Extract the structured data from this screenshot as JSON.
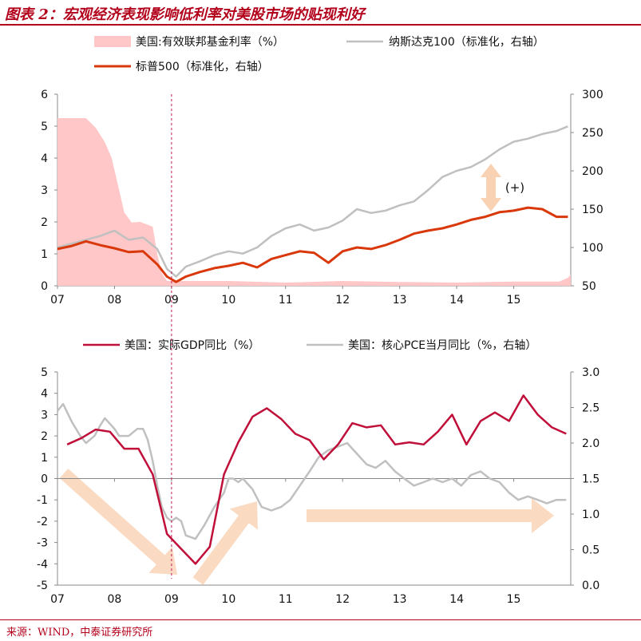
{
  "title": "图表 2：宏观经济表现影响低利率对美股市场的贴现利好",
  "source": "来源：WIND，中泰证券研究所",
  "colors": {
    "accent": "#b3001b",
    "fed_fill": "#ffc7c7",
    "nasdaq": "#c0c0c0",
    "sp500": "#d9380b",
    "gdp": "#c0103a",
    "pce": "#c0c0c0",
    "arrow": "#f9d2b3"
  },
  "chart_data": [
    {
      "type": "area+line",
      "title": "",
      "x_tick_labels": [
        "07",
        "08",
        "09",
        "10",
        "11",
        "12",
        "13",
        "14",
        "15"
      ],
      "x_range": [
        2007.0,
        2016.0
      ],
      "ylim_left": [
        0,
        6
      ],
      "yticks_left": [
        "0",
        "1",
        "2",
        "3",
        "4",
        "5",
        "6"
      ],
      "ylim_right": [
        50,
        300
      ],
      "yticks_right": [
        "50",
        "100",
        "150",
        "200",
        "250",
        "300"
      ],
      "annotation": "(+)",
      "series": [
        {
          "name": "美国:有效联邦基金利率（%）",
          "axis": "left",
          "style": "area",
          "x": [
            2007.0,
            2007.5,
            2007.67,
            2007.83,
            2007.95,
            2008.08,
            2008.17,
            2008.3,
            2008.45,
            2008.67,
            2008.75,
            2008.83,
            2008.92,
            2009.0,
            2009.5,
            2010.0,
            2011.0,
            2012.0,
            2013.0,
            2014.0,
            2015.0,
            2015.8,
            2015.95,
            2016.0
          ],
          "values": [
            5.25,
            5.25,
            4.95,
            4.5,
            4.0,
            3.0,
            2.3,
            1.98,
            2.0,
            1.85,
            1.0,
            0.4,
            0.15,
            0.15,
            0.15,
            0.15,
            0.1,
            0.15,
            0.12,
            0.1,
            0.13,
            0.13,
            0.25,
            0.35
          ]
        },
        {
          "name": "纳斯达克100（标准化，右轴）",
          "axis": "right",
          "style": "line",
          "x": [
            2007.0,
            2007.25,
            2007.5,
            2007.75,
            2008.0,
            2008.25,
            2008.5,
            2008.75,
            2008.92,
            2009.08,
            2009.25,
            2009.5,
            2009.75,
            2010.0,
            2010.25,
            2010.5,
            2010.75,
            2011.0,
            2011.25,
            2011.5,
            2011.75,
            2012.0,
            2012.25,
            2012.5,
            2012.75,
            2013.0,
            2013.25,
            2013.5,
            2013.75,
            2014.0,
            2014.25,
            2014.5,
            2014.75,
            2015.0,
            2015.25,
            2015.5,
            2015.75,
            2015.95
          ],
          "values": [
            100,
            105,
            110,
            115,
            122,
            110,
            113,
            98,
            72,
            62,
            75,
            82,
            90,
            95,
            92,
            100,
            115,
            125,
            130,
            122,
            126,
            135,
            150,
            145,
            148,
            155,
            160,
            175,
            192,
            200,
            205,
            215,
            228,
            238,
            242,
            248,
            252,
            258
          ]
        },
        {
          "name": "标普500（标准化，右轴）",
          "axis": "right",
          "style": "line",
          "x": [
            2007.0,
            2007.25,
            2007.5,
            2007.75,
            2008.0,
            2008.25,
            2008.5,
            2008.75,
            2008.92,
            2009.08,
            2009.25,
            2009.5,
            2009.75,
            2010.0,
            2010.25,
            2010.5,
            2010.75,
            2011.0,
            2011.25,
            2011.5,
            2011.75,
            2012.0,
            2012.25,
            2012.5,
            2012.75,
            2013.0,
            2013.25,
            2013.5,
            2013.75,
            2014.0,
            2014.25,
            2014.5,
            2014.75,
            2015.0,
            2015.25,
            2015.5,
            2015.75,
            2015.95
          ],
          "values": [
            98,
            102,
            108,
            103,
            99,
            94,
            95,
            78,
            62,
            55,
            62,
            68,
            73,
            76,
            80,
            74,
            85,
            90,
            95,
            93,
            80,
            95,
            100,
            98,
            103,
            110,
            118,
            122,
            125,
            130,
            136,
            140,
            146,
            148,
            152,
            150,
            140,
            140
          ]
        }
      ]
    },
    {
      "type": "line",
      "title": "",
      "x_tick_labels": [
        "07",
        "08",
        "09",
        "10",
        "11",
        "12",
        "13",
        "14",
        "15"
      ],
      "x_range": [
        2007.0,
        2016.0
      ],
      "ylim_left": [
        -5,
        5
      ],
      "yticks_left": [
        "-5",
        "-4",
        "-3",
        "-2",
        "-1",
        "0",
        "1",
        "2",
        "3",
        "4",
        "5"
      ],
      "ylim_right": [
        0.0,
        3.0
      ],
      "yticks_right": [
        "0.0",
        "0.5",
        "1.0",
        "1.5",
        "2.0",
        "2.5",
        "3.0"
      ],
      "series": [
        {
          "name": "美国：实际GDP同比（%）",
          "axis": "left",
          "x": [
            2007.17,
            2007.42,
            2007.67,
            2007.92,
            2008.17,
            2008.42,
            2008.67,
            2008.92,
            2009.17,
            2009.42,
            2009.67,
            2009.92,
            2010.17,
            2010.42,
            2010.67,
            2010.92,
            2011.17,
            2011.42,
            2011.67,
            2011.92,
            2012.17,
            2012.42,
            2012.67,
            2012.92,
            2013.17,
            2013.42,
            2013.67,
            2013.92,
            2014.17,
            2014.42,
            2014.67,
            2014.92,
            2015.17,
            2015.42,
            2015.67,
            2015.92
          ],
          "values": [
            1.6,
            1.9,
            2.3,
            2.2,
            1.4,
            1.4,
            0.2,
            -2.6,
            -3.3,
            -4.0,
            -3.2,
            0.2,
            1.7,
            2.9,
            3.3,
            2.8,
            2.1,
            1.8,
            0.9,
            1.6,
            2.6,
            2.4,
            2.5,
            1.6,
            1.7,
            1.6,
            2.2,
            3.0,
            1.6,
            2.7,
            3.1,
            2.7,
            3.9,
            3.0,
            2.4,
            2.1
          ]
        },
        {
          "name": "美国：核心PCE当月同比（%，右轴）",
          "axis": "right",
          "x": [
            2007.0,
            2007.1,
            2007.25,
            2007.4,
            2007.5,
            2007.65,
            2007.75,
            2007.83,
            2008.0,
            2008.08,
            2008.25,
            2008.4,
            2008.5,
            2008.58,
            2008.67,
            2008.75,
            2008.83,
            2008.92,
            2009.0,
            2009.08,
            2009.17,
            2009.25,
            2009.42,
            2009.58,
            2009.75,
            2009.92,
            2010.0,
            2010.08,
            2010.17,
            2010.25,
            2010.42,
            2010.58,
            2010.75,
            2010.92,
            2011.08,
            2011.25,
            2011.42,
            2011.58,
            2011.75,
            2011.92,
            2012.08,
            2012.25,
            2012.42,
            2012.58,
            2012.75,
            2012.92,
            2013.08,
            2013.25,
            2013.42,
            2013.58,
            2013.75,
            2013.92,
            2014.08,
            2014.25,
            2014.42,
            2014.58,
            2014.75,
            2014.92,
            2015.08,
            2015.25,
            2015.42,
            2015.58,
            2015.75,
            2015.92
          ],
          "values": [
            2.45,
            2.55,
            2.3,
            2.1,
            2.0,
            2.1,
            2.25,
            2.35,
            2.2,
            2.1,
            2.1,
            2.2,
            2.2,
            2.05,
            1.75,
            1.4,
            1.1,
            0.95,
            0.9,
            0.95,
            0.9,
            0.7,
            0.65,
            0.85,
            1.1,
            1.3,
            1.5,
            1.5,
            1.45,
            1.5,
            1.35,
            1.1,
            1.05,
            1.1,
            1.2,
            1.4,
            1.6,
            1.8,
            1.9,
            1.95,
            2.0,
            1.85,
            1.7,
            1.65,
            1.75,
            1.6,
            1.5,
            1.4,
            1.45,
            1.5,
            1.45,
            1.5,
            1.4,
            1.55,
            1.6,
            1.5,
            1.45,
            1.3,
            1.2,
            1.25,
            1.2,
            1.15,
            1.2,
            1.2
          ]
        }
      ]
    }
  ]
}
